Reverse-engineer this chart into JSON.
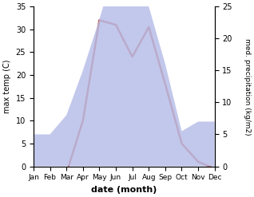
{
  "months": [
    "Jan",
    "Feb",
    "Mar",
    "Apr",
    "May",
    "Jun",
    "Jul",
    "Aug",
    "Sep",
    "Oct",
    "Nov",
    "Dec"
  ],
  "temperature": [
    -0.5,
    -2.0,
    -1.5,
    10.0,
    32.0,
    31.0,
    24.0,
    30.5,
    18.0,
    5.0,
    1.0,
    -0.5
  ],
  "precipitation_kg": [
    5.0,
    5.0,
    8.0,
    15.0,
    23.0,
    31.5,
    35.0,
    25.0,
    16.0,
    5.5,
    7.0,
    7.0
  ],
  "temp_color": "#c0392b",
  "precip_fill_color": "#b8bfe8",
  "fill_alpha": 0.85,
  "temp_ylim": [
    0,
    35
  ],
  "precip_ylim": [
    0,
    25
  ],
  "temp_yticks": [
    0,
    5,
    10,
    15,
    20,
    25,
    30,
    35
  ],
  "precip_yticks": [
    0,
    5,
    10,
    15,
    20,
    25
  ],
  "ylabel_left": "max temp (C)",
  "ylabel_right": "med. precipitation (kg/m2)",
  "xlabel": "date (month)",
  "fig_width": 3.18,
  "fig_height": 2.47,
  "dpi": 100,
  "line_width": 1.8
}
